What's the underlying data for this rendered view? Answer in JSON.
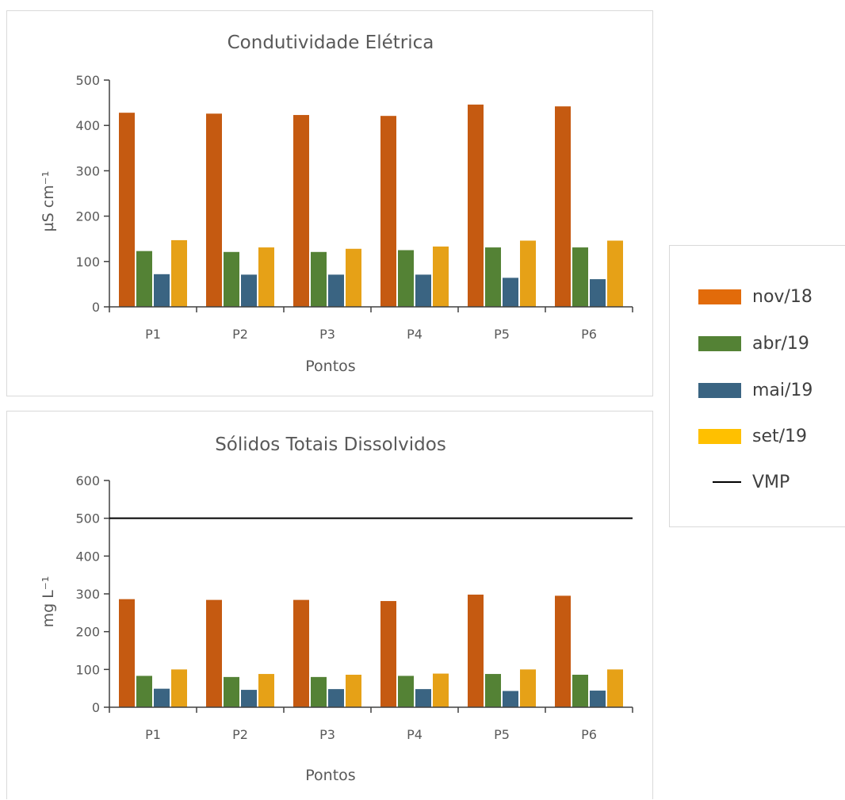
{
  "chart_data": [
    {
      "type": "bar",
      "title": "Condutividade Elétrica",
      "xlabel": "Pontos",
      "ylabel": "µS cm⁻¹",
      "ylim": [
        0,
        500
      ],
      "yticks": [
        0,
        100,
        200,
        300,
        400,
        500
      ],
      "categories": [
        "P1",
        "P2",
        "P3",
        "P4",
        "P5",
        "P6"
      ],
      "series": [
        {
          "name": "nov/18",
          "color": "#C55A11",
          "values": [
            428,
            426,
            423,
            421,
            446,
            442
          ]
        },
        {
          "name": "abr/19",
          "color": "#548235",
          "values": [
            123,
            121,
            121,
            125,
            131,
            131
          ]
        },
        {
          "name": "mai/19",
          "color": "#3A6482",
          "values": [
            72,
            71,
            71,
            71,
            64,
            61
          ]
        },
        {
          "name": "set/19",
          "color": "#E6A117",
          "values": [
            147,
            131,
            128,
            133,
            146,
            146
          ]
        }
      ]
    },
    {
      "type": "bar",
      "title": "Sólidos Totais Dissolvidos",
      "xlabel": "Pontos",
      "ylabel": "mg L⁻¹",
      "ylim": [
        0,
        600
      ],
      "yticks": [
        0,
        100,
        200,
        300,
        400,
        500,
        600
      ],
      "categories": [
        "P1",
        "P2",
        "P3",
        "P4",
        "P5",
        "P6"
      ],
      "series": [
        {
          "name": "nov/18",
          "color": "#C55A11",
          "values": [
            286,
            284,
            284,
            281,
            298,
            295
          ]
        },
        {
          "name": "abr/19",
          "color": "#548235",
          "values": [
            83,
            80,
            80,
            83,
            88,
            86
          ]
        },
        {
          "name": "mai/19",
          "color": "#3A6482",
          "values": [
            49,
            46,
            48,
            48,
            43,
            44
          ]
        },
        {
          "name": "set/19",
          "color": "#E6A117",
          "values": [
            100,
            88,
            86,
            89,
            100,
            100
          ]
        }
      ],
      "reference_line": {
        "name": "VMP",
        "value": 500,
        "color": "#000000"
      }
    }
  ],
  "legend": {
    "items": [
      {
        "label": "nov/18",
        "kind": "bar",
        "color": "#E26B0A"
      },
      {
        "label": "abr/19",
        "kind": "bar",
        "color": "#548235"
      },
      {
        "label": "mai/19",
        "kind": "bar",
        "color": "#3A6482"
      },
      {
        "label": "set/19",
        "kind": "bar",
        "color": "#FFC000"
      },
      {
        "label": "VMP",
        "kind": "line",
        "color": "#000000"
      }
    ]
  }
}
